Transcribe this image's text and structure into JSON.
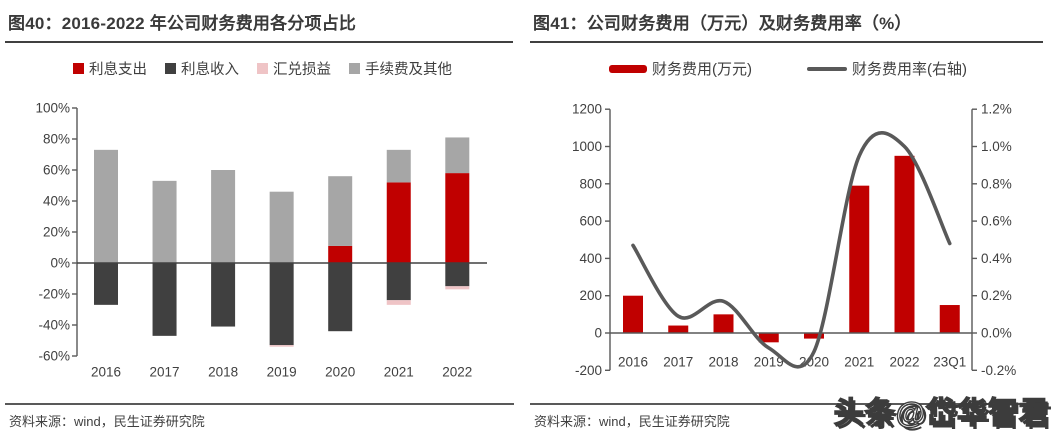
{
  "watermark": "头条@岱华智君",
  "panels": {
    "left": {
      "title": "图40：2016-2022 年公司财务费用各分项占比",
      "source": "资料来源：wind，民生证券研究院"
    },
    "right": {
      "title": "图41：公司财务费用（万元）及财务费用率（%）",
      "source": "资料来源：wind，民生证券研究院"
    }
  },
  "colors": {
    "red": "#c00000",
    "dark_gray": "#404040",
    "pink": "#efc4c6",
    "light_gray": "#a6a6a6",
    "line_gray": "#595959",
    "axis": "#595959",
    "text": "#404040"
  },
  "chart_data": [
    {
      "type": "bar",
      "stacked": true,
      "title": "图40：2016-2022 年公司财务费用各分项占比",
      "categories": [
        "2016",
        "2017",
        "2018",
        "2019",
        "2020",
        "2021",
        "2022"
      ],
      "series": [
        {
          "name": "利息支出",
          "color": "#c00000",
          "values": [
            0,
            0,
            0,
            0,
            11,
            52,
            58
          ]
        },
        {
          "name": "利息收入",
          "color": "#404040",
          "values": [
            -27,
            -47,
            -41,
            -53,
            -44,
            -24,
            -15
          ]
        },
        {
          "name": "汇兑损益",
          "color": "#efc4c6",
          "values": [
            0,
            0,
            0,
            -1,
            0,
            -3,
            -2
          ]
        },
        {
          "name": "手续费及其他",
          "color": "#a6a6a6",
          "values": [
            73,
            53,
            60,
            46,
            45,
            21,
            23
          ]
        }
      ],
      "ylim": [
        -60,
        100
      ],
      "ytick_step": 20,
      "yformat": "percent",
      "grid": false,
      "legend_position": "top"
    },
    {
      "type": "bar+line",
      "title": "图41：公司财务费用（万元）及财务费用率（%）",
      "categories": [
        "2016",
        "2017",
        "2018",
        "2019",
        "2020",
        "2021",
        "2022",
        "23Q1"
      ],
      "series": [
        {
          "name": "财务费用(万元)",
          "type": "bar",
          "axis": "left",
          "color": "#c00000",
          "values": [
            200,
            40,
            100,
            -50,
            -30,
            790,
            950,
            150
          ]
        },
        {
          "name": "财务费用率(右轴)",
          "type": "line",
          "axis": "right",
          "color": "#595959",
          "values": [
            0.47,
            0.09,
            0.17,
            -0.08,
            -0.1,
            0.95,
            1.0,
            0.48
          ]
        }
      ],
      "ylim_left": [
        -200,
        1200
      ],
      "ytick_step_left": 200,
      "ylim_right": [
        -0.2,
        1.2
      ],
      "ytick_step_right": 0.2,
      "yformat_right": "percent_1dp",
      "grid": false,
      "legend_position": "top"
    }
  ]
}
